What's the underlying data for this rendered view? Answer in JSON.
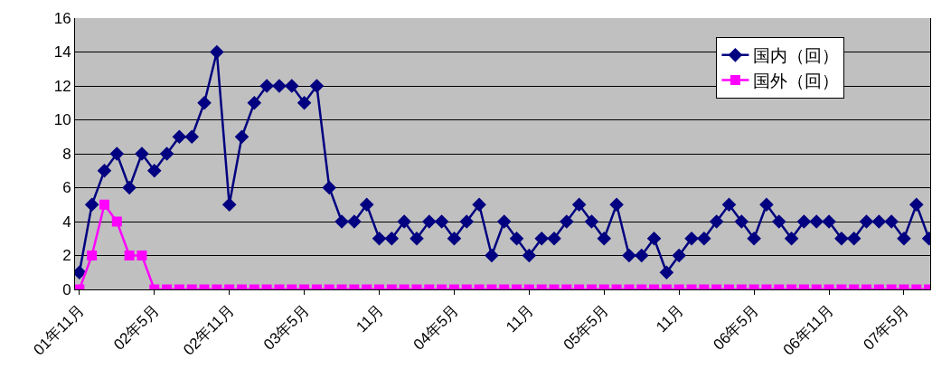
{
  "chart_data": {
    "type": "line",
    "categories": [
      "01年11月",
      null,
      null,
      null,
      null,
      null,
      "02年5月",
      null,
      null,
      null,
      null,
      null,
      "02年11月",
      null,
      null,
      null,
      null,
      null,
      "03年5月",
      null,
      null,
      null,
      null,
      null,
      "11月",
      null,
      null,
      null,
      null,
      null,
      "04年5月",
      null,
      null,
      null,
      null,
      null,
      "11月",
      null,
      null,
      null,
      null,
      null,
      "05年5月",
      null,
      null,
      null,
      null,
      null,
      "11月",
      null,
      null,
      null,
      null,
      null,
      "06年5月",
      null,
      null,
      null,
      null,
      null,
      "06年11月",
      null,
      null,
      null,
      null,
      null,
      "07年5月",
      null,
      null
    ],
    "series": [
      {
        "name": "国内（回）",
        "color": "#000080",
        "marker": "diamond",
        "values": [
          1,
          5,
          7,
          8,
          6,
          8,
          7,
          8,
          9,
          9,
          11,
          14,
          5,
          9,
          11,
          12,
          12,
          12,
          11,
          12,
          6,
          4,
          4,
          5,
          3,
          3,
          4,
          3,
          4,
          4,
          3,
          4,
          5,
          2,
          4,
          3,
          2,
          3,
          3,
          4,
          5,
          4,
          3,
          5,
          2,
          2,
          3,
          1,
          2,
          3,
          3,
          4,
          5,
          4,
          3,
          5,
          4,
          3,
          4,
          4,
          4,
          3,
          3,
          4,
          4,
          4,
          3,
          5,
          3
        ]
      },
      {
        "name": "国外（回）",
        "color": "#ff00ff",
        "marker": "square",
        "values": [
          0,
          2,
          5,
          4,
          2,
          2,
          0,
          0,
          0,
          0,
          0,
          0,
          0,
          0,
          0,
          0,
          0,
          0,
          0,
          0,
          0,
          0,
          0,
          0,
          0,
          0,
          0,
          0,
          0,
          0,
          0,
          0,
          0,
          0,
          0,
          0,
          0,
          0,
          0,
          0,
          0,
          0,
          0,
          0,
          0,
          0,
          0,
          0,
          0,
          0,
          0,
          0,
          0,
          0,
          0,
          0,
          0,
          0,
          0,
          0,
          0,
          0,
          0,
          0,
          0,
          0,
          0,
          0,
          0
        ]
      }
    ],
    "ylim": [
      0,
      16
    ],
    "yticks": [
      0,
      2,
      4,
      6,
      8,
      10,
      12,
      14,
      16
    ],
    "grid": "y",
    "legend": "top right",
    "line_style": "solid"
  }
}
